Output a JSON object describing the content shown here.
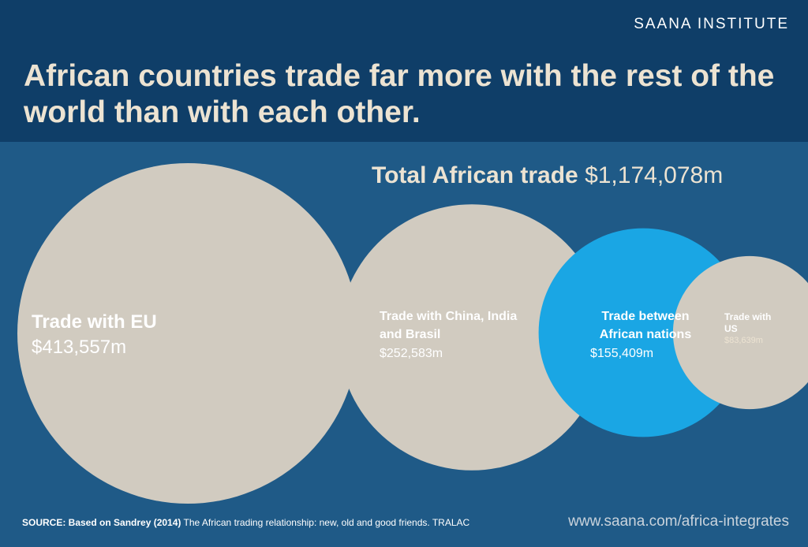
{
  "brand": "SAANA INSTITUTE",
  "headline": "African countries trade far more with the rest of the world than with each other.",
  "total": {
    "label": "Total African trade",
    "value": "$1,174,078m"
  },
  "colors": {
    "background": "#1f5a87",
    "header": "#0f3e68",
    "bubble": "#d1cbc0",
    "highlight": "#1aa6e4",
    "headline": "#ece3d2"
  },
  "chart_data": {
    "type": "bubble",
    "unit": "$m",
    "series": [
      {
        "name": "Trade with EU",
        "value": 413557,
        "label": "$413,557m",
        "highlight": false
      },
      {
        "name": "Trade with China, India and Brasil",
        "value": 252583,
        "label": "$252,583m",
        "highlight": false
      },
      {
        "name": "Trade between African nations",
        "value": 155409,
        "label": "$155,409m",
        "highlight": true
      },
      {
        "name": "Trade with US",
        "value": 83639,
        "label": "$83,639m",
        "highlight": false
      }
    ]
  },
  "footer": {
    "source_label": "SOURCE: Based on Sandrey (2014)",
    "source_text": "The African trading relationship: new, old and good friends. TRALAC",
    "url": "www.saana.com/africa-integrates"
  }
}
